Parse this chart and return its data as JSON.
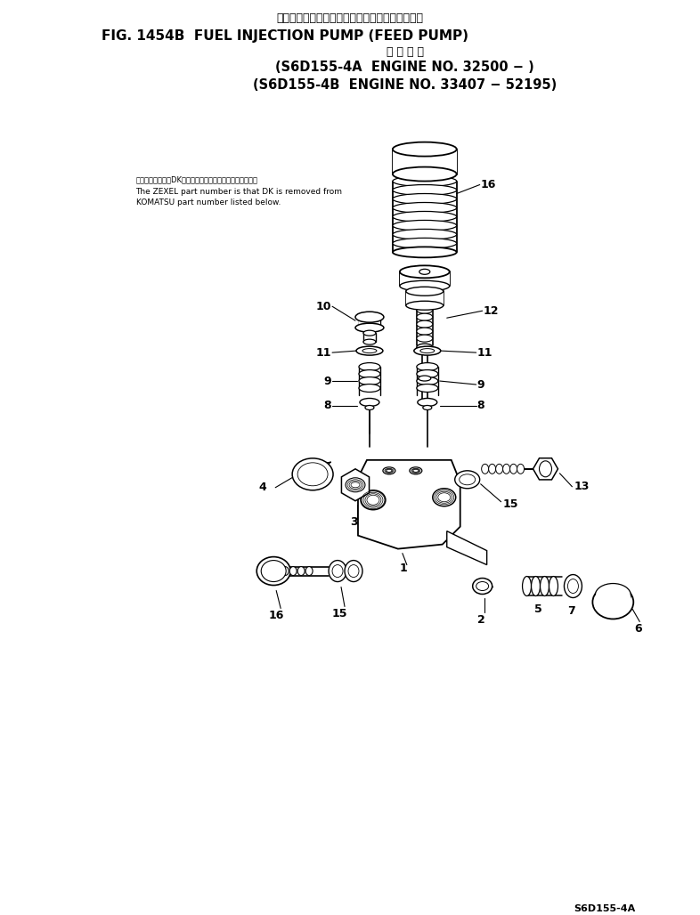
{
  "title_japanese": "フェルインジェクションポンプ　フィードポンプ",
  "title_english": "FIG. 1454B  FUEL INJECTION PUMP (FEED PUMP)",
  "subtitle_japanese": "適 用 号 機",
  "subtitle_line1": "(S6D155-4A  ENGINE NO. 32500 − )",
  "subtitle_line2": "(S6D155-4B  ENGINE NO. 33407 − 52195)",
  "note_japanese": "品番のメーカ図番DKを除いたものがゼクセルの品番です。",
  "note_english1": "The ZEXEL part number is that DK is removed from",
  "note_english2": "KOMATSU part number listed below.",
  "footer": "S6D155-4A",
  "bg_color": "#ffffff",
  "line_color": "#000000",
  "text_color": "#000000"
}
